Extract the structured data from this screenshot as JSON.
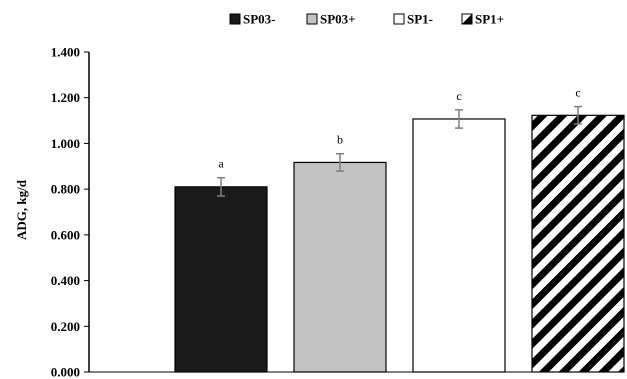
{
  "chart_data": {
    "type": "bar",
    "title": "",
    "xlabel": "",
    "ylabel": "ADG, kg/d",
    "ylim": [
      0,
      1.4
    ],
    "yticks": [
      "0.000",
      "0.200",
      "0.400",
      "0.600",
      "0.800",
      "1.000",
      "1.200",
      "1.400"
    ],
    "ytick_values": [
      0,
      0.2,
      0.4,
      0.6,
      0.8,
      1.0,
      1.2,
      1.4
    ],
    "legend_position": "top-center",
    "grid": false,
    "series": [
      {
        "name": "SP03-",
        "value": 0.81,
        "error": 0.04,
        "sig": "a",
        "fill": "solid",
        "color": "#1a1a1a"
      },
      {
        "name": "SP03+",
        "value": 0.917,
        "error": 0.038,
        "sig": "b",
        "fill": "solid",
        "color": "#c2c2c2"
      },
      {
        "name": "SP1-",
        "value": 1.107,
        "error": 0.04,
        "sig": "c",
        "fill": "solid",
        "color": "#ffffff"
      },
      {
        "name": "SP1+",
        "value": 1.123,
        "error": 0.038,
        "sig": "c",
        "fill": "hatch",
        "color": "#000000"
      }
    ]
  }
}
